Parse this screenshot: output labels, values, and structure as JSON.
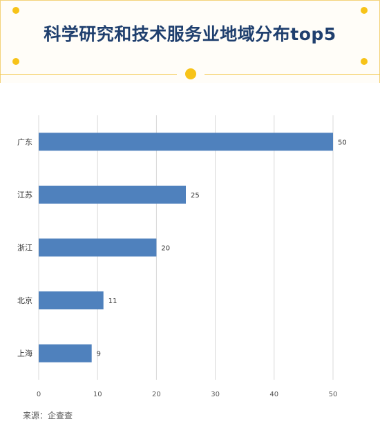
{
  "title": "科学研究和技术服务业地域分布top5",
  "source_label": "来源：企查查",
  "colors": {
    "bar": "#4f81bd",
    "title": "#1f3f6e",
    "accent": "#f7c318",
    "grid": "#d9d9d9"
  },
  "chart_data": {
    "type": "bar",
    "orientation": "horizontal",
    "categories": [
      "广东",
      "江苏",
      "浙江",
      "北京",
      "上海"
    ],
    "values": [
      50,
      25,
      20,
      11,
      9
    ],
    "xlim": [
      0,
      50
    ],
    "xticks": [
      0,
      10,
      20,
      30,
      40,
      50
    ],
    "grid": true,
    "data_labels": true
  }
}
